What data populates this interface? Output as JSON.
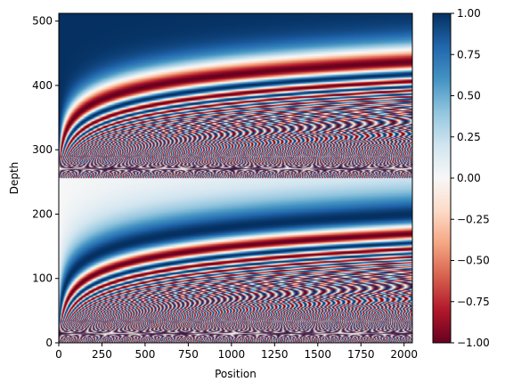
{
  "chart_data": {
    "type": "heatmap",
    "title": "",
    "xlabel": "Position",
    "ylabel": "Depth",
    "xlim": [
      0,
      2048
    ],
    "ylim": [
      0,
      512
    ],
    "x_ticks": [
      0,
      250,
      500,
      750,
      1000,
      1250,
      1500,
      1750,
      2000
    ],
    "x_tick_labels": [
      "0",
      "250",
      "500",
      "750",
      "1000",
      "1250",
      "1500",
      "1750",
      "2000"
    ],
    "y_ticks": [
      0,
      100,
      200,
      300,
      400,
      500
    ],
    "y_tick_labels": [
      "0",
      "100",
      "200",
      "300",
      "400",
      "500"
    ],
    "value_range": [
      -1.0,
      1.0
    ],
    "colormap": "RdBu",
    "colorbar": {
      "ticks": [
        -1.0,
        -0.75,
        -0.5,
        -0.25,
        0.0,
        0.25,
        0.5,
        0.75,
        1.0
      ],
      "tick_labels": [
        "−1.00",
        "−0.75",
        "−0.50",
        "−0.25",
        "0.00",
        "0.25",
        "0.50",
        "0.75",
        "1.00"
      ],
      "colors": [
        "#67001f",
        "#b2182b",
        "#d6604d",
        "#f4a582",
        "#fddbc7",
        "#f7f7f7",
        "#d1e5f0",
        "#92c5de",
        "#4393c3",
        "#2166ac",
        "#053061"
      ]
    },
    "grid": false
  }
}
